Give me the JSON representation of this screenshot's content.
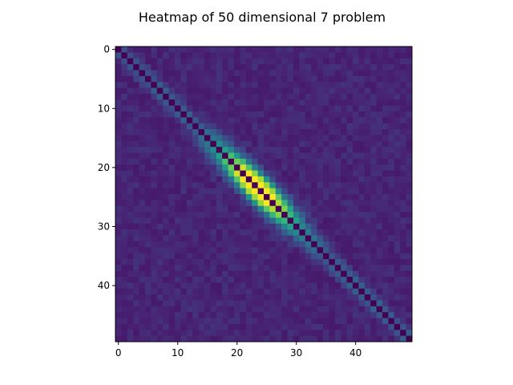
{
  "chart_data": {
    "type": "heatmap",
    "title": "Heatmap of 50 dimensional 7 problem",
    "size": 50,
    "x_ticks": [
      0,
      10,
      20,
      30,
      40
    ],
    "y_ticks": [
      0,
      10,
      20,
      30,
      40
    ],
    "xlim": [
      -0.5,
      49.5
    ],
    "ylim": [
      49.5,
      -0.5
    ],
    "colormap": "viridis",
    "value_range": [
      0,
      1
    ],
    "diagonal_value": 0,
    "background_value": 0.13,
    "off_diagonal_peak": {
      "center_index": 23.5,
      "peak_value": 0.98,
      "spread_indices": 2.6
    },
    "grid": false,
    "xlabel": "",
    "ylabel": ""
  }
}
